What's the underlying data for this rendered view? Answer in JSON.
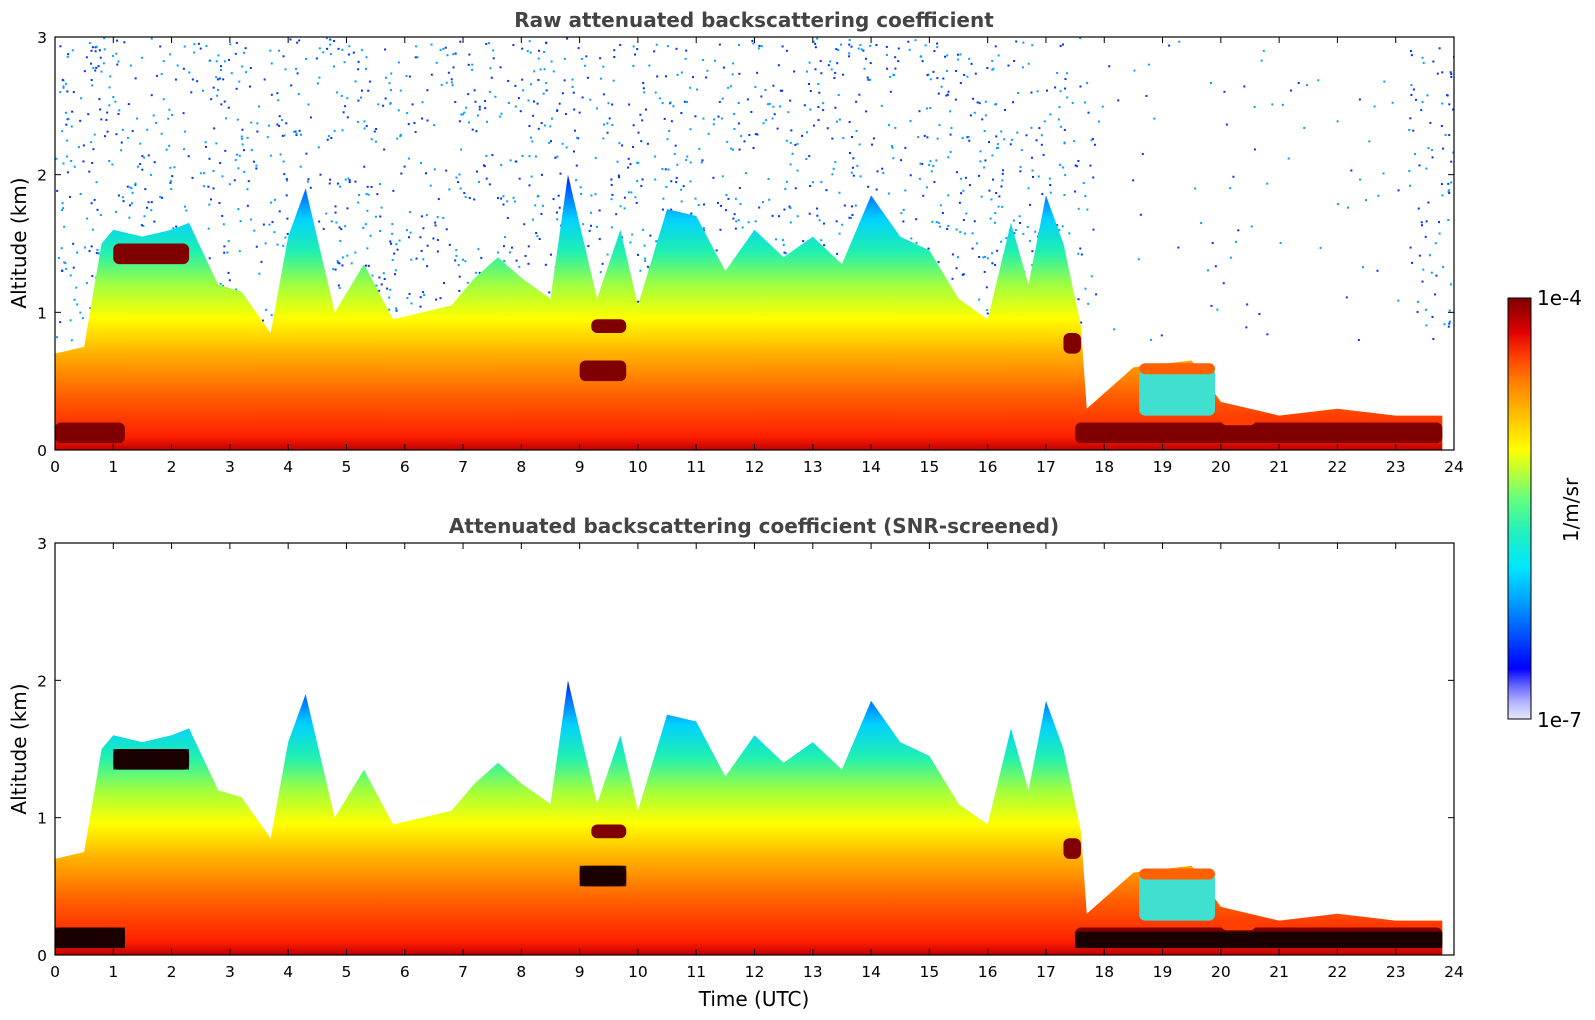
{
  "chart_data": [
    {
      "type": "heatmap",
      "title": "Raw attenuated backscattering coefficient",
      "xlabel": "",
      "ylabel": "Altitude (km)",
      "xlim": [
        0,
        24
      ],
      "ylim": [
        0,
        3
      ],
      "xticks": [
        "0",
        "1",
        "2",
        "3",
        "4",
        "5",
        "6",
        "7",
        "8",
        "9",
        "10",
        "11",
        "12",
        "13",
        "14",
        "15",
        "16",
        "17",
        "18",
        "19",
        "20",
        "21",
        "22",
        "23",
        "24"
      ],
      "yticks": [
        "0",
        "1",
        "2",
        "3"
      ],
      "mixing_layer_top_km": {
        "x": [
          0,
          0.5,
          0.8,
          1.0,
          1.5,
          2.0,
          2.3,
          2.8,
          3.2,
          3.7,
          4.0,
          4.3,
          4.8,
          5.3,
          5.8,
          6.3,
          6.8,
          7.2,
          7.6,
          8.0,
          8.5,
          8.8,
          9.3,
          9.7,
          10.0,
          10.5,
          11.0,
          11.5,
          12.0,
          12.5,
          13.0,
          13.5,
          14.0,
          14.5,
          15.0,
          15.5,
          16.0,
          16.4,
          16.7,
          17.0,
          17.3,
          17.6,
          17.7,
          18.5,
          19.5,
          20.0,
          21.0,
          22.0,
          23.0,
          23.8
        ],
        "y": [
          0.7,
          0.75,
          1.5,
          1.6,
          1.55,
          1.6,
          1.65,
          1.2,
          1.15,
          0.85,
          1.55,
          1.9,
          1.0,
          1.35,
          0.95,
          1.0,
          1.05,
          1.25,
          1.4,
          1.25,
          1.1,
          2.0,
          1.1,
          1.6,
          1.05,
          1.75,
          1.7,
          1.3,
          1.6,
          1.4,
          1.55,
          1.35,
          1.85,
          1.55,
          1.45,
          1.1,
          0.95,
          1.65,
          1.2,
          1.85,
          1.5,
          0.9,
          0.3,
          0.6,
          0.65,
          0.35,
          0.25,
          0.3,
          0.25,
          0.25
        ]
      },
      "colors": {
        "low": "#0000ff",
        "mid": "#00ffff",
        "high": "#ff0000",
        "saturated": "#800000",
        "noise": "#1a3cff"
      }
    },
    {
      "type": "heatmap",
      "title": "Attenuated backscattering coefficient (SNR-screened)",
      "xlabel": "Time (UTC)",
      "ylabel": "Altitude (km)",
      "xlim": [
        0,
        24
      ],
      "ylim": [
        0,
        3
      ],
      "xticks": [
        "0",
        "1",
        "2",
        "3",
        "4",
        "5",
        "6",
        "7",
        "8",
        "9",
        "10",
        "11",
        "12",
        "13",
        "14",
        "15",
        "16",
        "17",
        "18",
        "19",
        "20",
        "21",
        "22",
        "23",
        "24"
      ],
      "yticks": [
        "0",
        "1",
        "2",
        "3"
      ],
      "colors": {
        "low": "#0000ff",
        "mid": "#00ffff",
        "high": "#ff0000",
        "saturated": "#800000",
        "screened": "#000000"
      }
    }
  ],
  "colorbar": {
    "label": "1/m/sr",
    "max_label": "1e-4",
    "min_label": "1e-7",
    "range": [
      1e-07,
      0.0001
    ],
    "scale": "log",
    "colormap": [
      "#e6e6ff",
      "#b4b4ff",
      "#6464ff",
      "#0000ff",
      "#0050ff",
      "#00a0ff",
      "#00e6ff",
      "#20f0c0",
      "#60ff80",
      "#b0ff40",
      "#ffff00",
      "#ffc000",
      "#ff8000",
      "#ff4000",
      "#e00000",
      "#a00000",
      "#800000"
    ]
  }
}
